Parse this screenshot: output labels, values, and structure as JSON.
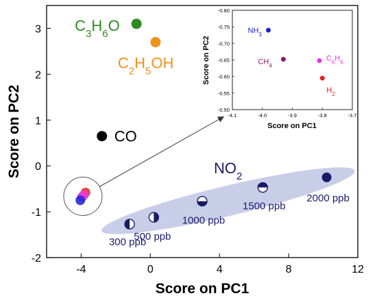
{
  "chart_data": [
    {
      "type": "scatter",
      "title": "",
      "xlabel": "Score on PC1",
      "ylabel": "Score on PC2",
      "xlim": [
        -6,
        12
      ],
      "ylim": [
        -2,
        3.5
      ],
      "x_ticks": [
        -4,
        0,
        4,
        8,
        12
      ],
      "x_tick_labels": [
        "-4",
        "0",
        "4",
        "8",
        "12"
      ],
      "y_ticks": [
        -2,
        -1,
        0,
        1,
        2,
        3
      ],
      "y_tick_labels": [
        "-2",
        "-1",
        "0",
        "1",
        "2",
        "3"
      ],
      "grid": false,
      "gases": [
        {
          "label_parts": [
            [
              "C",
              ""
            ],
            [
              "3",
              "sub"
            ],
            [
              "H",
              ""
            ],
            [
              "6",
              "sub"
            ],
            [
              "O",
              ""
            ]
          ],
          "x": -0.8,
          "y": 3.1,
          "color": "#2e8b1e"
        },
        {
          "label_parts": [
            [
              "C",
              ""
            ],
            [
              "2",
              "sub"
            ],
            [
              "H",
              ""
            ],
            [
              "5",
              "sub"
            ],
            [
              "OH",
              ""
            ]
          ],
          "x": 0.3,
          "y": 2.7,
          "color": "#f0901e"
        },
        {
          "label_parts": [
            [
              "CO",
              ""
            ]
          ],
          "x": -2.8,
          "y": 0.65,
          "color": "#000000"
        }
      ],
      "cluster_points": [
        {
          "x": -3.75,
          "y": -0.58,
          "color": "#e53030"
        },
        {
          "x": -3.95,
          "y": -0.68,
          "color": "#b0309a"
        },
        {
          "x": -3.85,
          "y": -0.64,
          "color": "#ef3bd8"
        },
        {
          "x": -4.05,
          "y": -0.75,
          "color": "#2a2ad8"
        }
      ],
      "no2": {
        "label_parts": [
          [
            "NO",
            ""
          ],
          [
            "2",
            "sub"
          ]
        ],
        "color": "#1a1a66",
        "label_color": "#1a1a6e",
        "ellipse_color": "#c9cee8",
        "points": [
          {
            "concentration": "300 ppb",
            "x": -1.2,
            "y": -1.27,
            "fill": "left"
          },
          {
            "concentration": "500 ppb",
            "x": 0.2,
            "y": -1.12,
            "fill": "right"
          },
          {
            "concentration": "1000 ppb",
            "x": 3.0,
            "y": -0.77,
            "fill": "bottom"
          },
          {
            "concentration": "1500 ppb",
            "x": 6.5,
            "y": -0.47,
            "fill": "top"
          },
          {
            "concentration": "2000 ppb",
            "x": 10.2,
            "y": -0.25,
            "fill": "full"
          }
        ]
      }
    },
    {
      "type": "scatter",
      "title": "",
      "xlabel": "Score on PC1",
      "ylabel": "Score on PC2",
      "xlim": [
        -4.1,
        -3.7
      ],
      "ylim": [
        -0.8,
        -0.5
      ],
      "reversed_y": true,
      "x_ticks": [
        -4.1,
        -4.0,
        -3.9,
        -3.8,
        -3.7
      ],
      "x_tick_labels": [
        "-4.1",
        "-4.0",
        "-3.9",
        "-3.8",
        "-3.7"
      ],
      "y_ticks": [
        -0.8,
        -0.75,
        -0.7,
        -0.65,
        -0.6,
        -0.55,
        -0.5
      ],
      "y_tick_labels": [
        "-0.80",
        "-0.75",
        "-0.70",
        "-0.65",
        "-0.60",
        "-0.55",
        "-0.50"
      ],
      "grid": false,
      "points": [
        {
          "label_parts": [
            [
              "NH",
              ""
            ],
            [
              "3",
              "sub"
            ]
          ],
          "x": -3.98,
          "y": -0.74,
          "color": "#2020d0"
        },
        {
          "label_parts": [
            [
              "CH",
              ""
            ],
            [
              "4",
              "sub"
            ]
          ],
          "x": -3.93,
          "y": -0.652,
          "color": "#8b1a6e"
        },
        {
          "label_parts": [
            [
              "C",
              ""
            ],
            [
              "6",
              "sub"
            ],
            [
              "H",
              ""
            ],
            [
              "6",
              "sub"
            ]
          ],
          "x": -3.81,
          "y": -0.648,
          "color": "#ee33e0"
        },
        {
          "label_parts": [
            [
              "H",
              ""
            ],
            [
              "2",
              "sub"
            ]
          ],
          "x": -3.8,
          "y": -0.595,
          "color": "#e02020"
        }
      ]
    }
  ]
}
